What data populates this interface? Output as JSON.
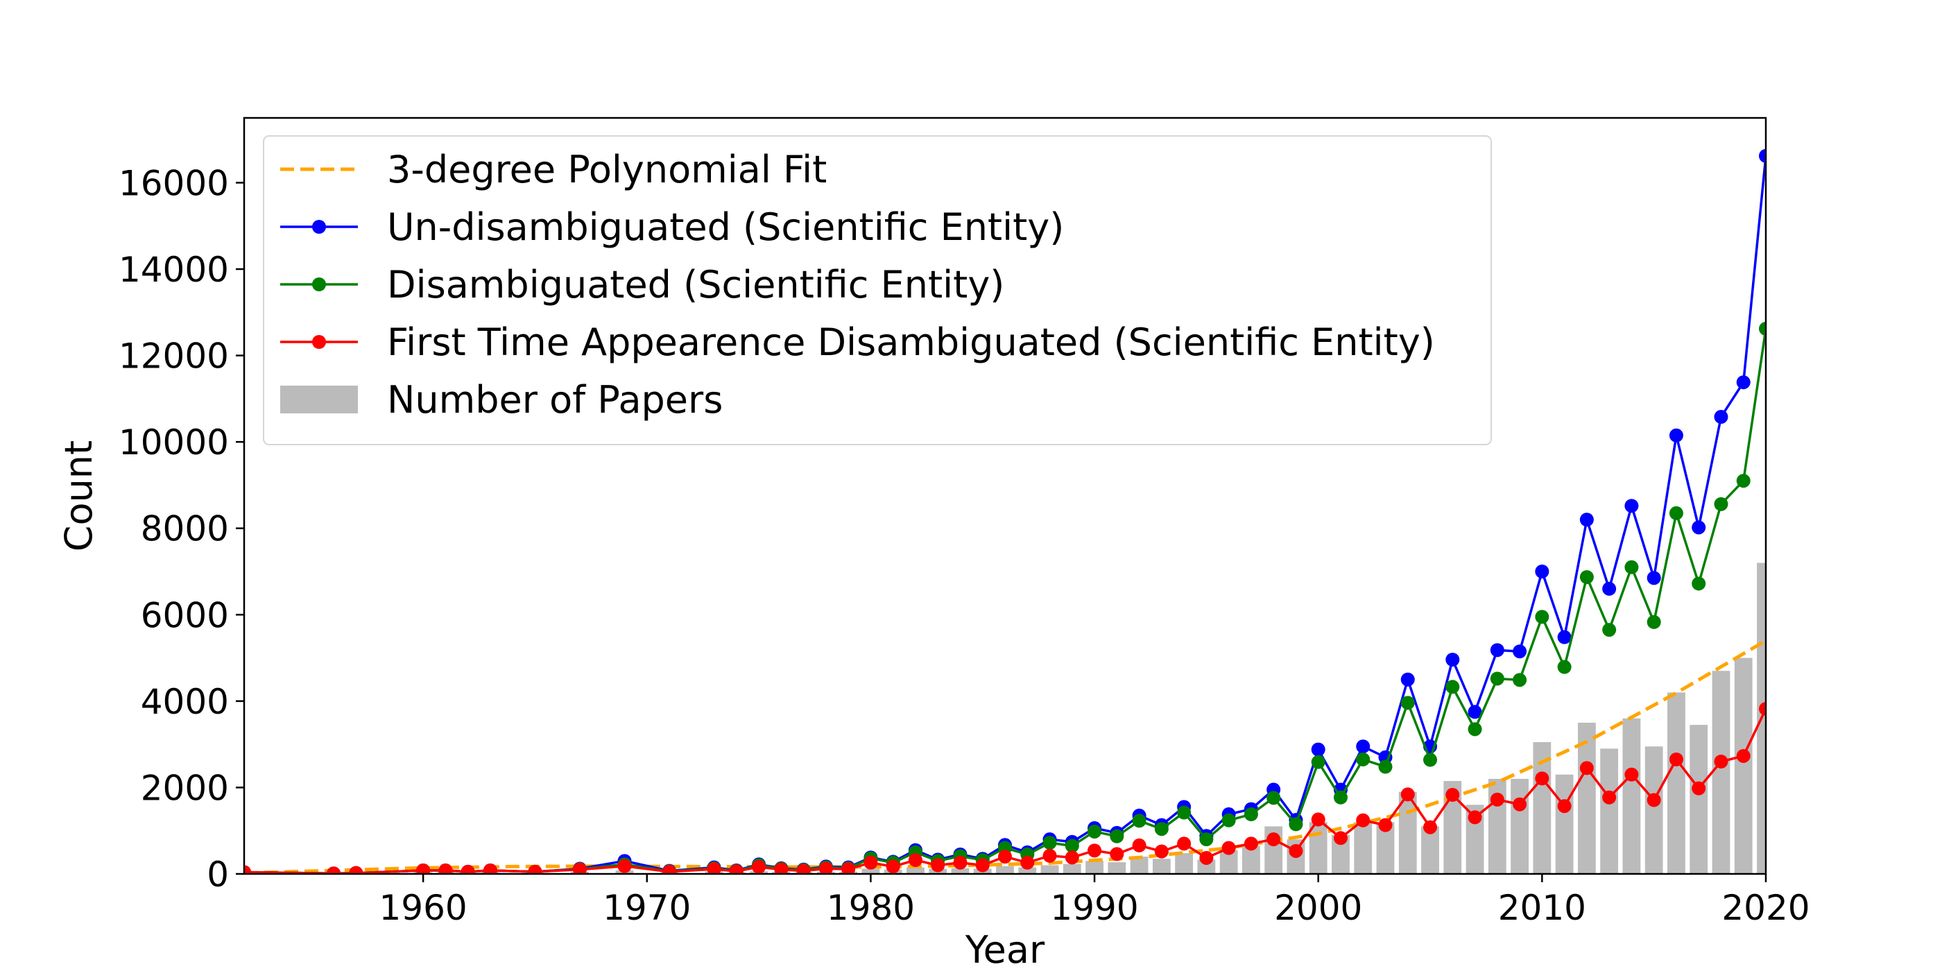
{
  "chart_data": {
    "type": "bar",
    "xlabel": "Year",
    "ylabel": "Count",
    "xlim": [
      1952,
      2020
    ],
    "ylim": [
      0,
      17500
    ],
    "x_ticks": [
      1960,
      1970,
      1980,
      1990,
      2000,
      2010,
      2020
    ],
    "y_ticks": [
      0,
      2000,
      4000,
      6000,
      8000,
      10000,
      12000,
      14000,
      16000
    ],
    "grid": false,
    "legend_position": "top-left",
    "bars": {
      "name": "Number of Papers",
      "color": "#bbbbbb",
      "x": [
        1952,
        1956,
        1957,
        1960,
        1961,
        1962,
        1963,
        1965,
        1967,
        1969,
        1971,
        1973,
        1974,
        1975,
        1976,
        1977,
        1978,
        1979,
        1980,
        1981,
        1982,
        1983,
        1984,
        1985,
        1986,
        1987,
        1988,
        1989,
        1990,
        1991,
        1992,
        1993,
        1994,
        1995,
        1996,
        1997,
        1998,
        1999,
        2000,
        2001,
        2002,
        2003,
        2004,
        2005,
        2006,
        2007,
        2008,
        2009,
        2010,
        2011,
        2012,
        2013,
        2014,
        2015,
        2016,
        2017,
        2018,
        2019,
        2020
      ],
      "values": [
        20,
        10,
        10,
        40,
        40,
        30,
        40,
        30,
        50,
        80,
        40,
        60,
        40,
        60,
        50,
        40,
        50,
        50,
        120,
        100,
        150,
        120,
        130,
        120,
        180,
        150,
        200,
        230,
        300,
        270,
        400,
        350,
        480,
        330,
        550,
        650,
        1100,
        800,
        1200,
        900,
        1200,
        1200,
        1900,
        1100,
        2150,
        1600,
        2200,
        2200,
        3050,
        2300,
        3500,
        2900,
        3600,
        2950,
        4200,
        3450,
        4700,
        5000,
        7200
      ]
    },
    "series": [
      {
        "name": "Un-disambiguated (Scientific Entity)",
        "color": "#0000ff",
        "markers": true,
        "x": [
          1952,
          1956,
          1957,
          1960,
          1961,
          1962,
          1963,
          1965,
          1967,
          1969,
          1971,
          1973,
          1974,
          1975,
          1976,
          1977,
          1978,
          1979,
          1980,
          1981,
          1982,
          1983,
          1984,
          1985,
          1986,
          1987,
          1988,
          1989,
          1990,
          1991,
          1992,
          1993,
          1994,
          1995,
          1996,
          1997,
          1998,
          1999,
          2000,
          2001,
          2002,
          2003,
          2004,
          2005,
          2006,
          2007,
          2008,
          2009,
          2010,
          2011,
          2012,
          2013,
          2014,
          2015,
          2016,
          2017,
          2018,
          2019,
          2020
        ],
        "values": [
          40,
          10,
          20,
          80,
          80,
          50,
          80,
          50,
          120,
          300,
          70,
          150,
          80,
          220,
          130,
          100,
          170,
          150,
          380,
          280,
          550,
          330,
          450,
          350,
          670,
          500,
          800,
          740,
          1060,
          950,
          1350,
          1130,
          1550,
          880,
          1380,
          1500,
          1950,
          1250,
          2880,
          1950,
          2950,
          2700,
          4500,
          2950,
          4960,
          3750,
          5180,
          5150,
          7000,
          5480,
          8200,
          6600,
          8520,
          6850,
          10150,
          8020,
          10580,
          11380,
          16620
        ]
      },
      {
        "name": "Disambiguated (Scientific Entity)",
        "color": "#008000",
        "markers": true,
        "x": [
          1952,
          1956,
          1957,
          1960,
          1961,
          1962,
          1963,
          1965,
          1967,
          1969,
          1971,
          1973,
          1974,
          1975,
          1976,
          1977,
          1978,
          1979,
          1980,
          1981,
          1982,
          1983,
          1984,
          1985,
          1986,
          1987,
          1988,
          1989,
          1990,
          1991,
          1992,
          1993,
          1994,
          1995,
          1996,
          1997,
          1998,
          1999,
          2000,
          2001,
          2002,
          2003,
          2004,
          2005,
          2006,
          2007,
          2008,
          2009,
          2010,
          2011,
          2012,
          2013,
          2014,
          2015,
          2016,
          2017,
          2018,
          2019,
          2020
        ],
        "values": [
          40,
          10,
          20,
          80,
          80,
          50,
          80,
          50,
          110,
          220,
          60,
          130,
          70,
          200,
          120,
          90,
          150,
          130,
          360,
          260,
          500,
          300,
          410,
          320,
          600,
          450,
          720,
          650,
          980,
          870,
          1230,
          1040,
          1420,
          800,
          1240,
          1380,
          1760,
          1150,
          2590,
          1770,
          2650,
          2480,
          3960,
          2640,
          4330,
          3350,
          4520,
          4490,
          5950,
          4790,
          6870,
          5650,
          7100,
          5830,
          8350,
          6720,
          8560,
          9100,
          12620
        ]
      },
      {
        "name": "First Time Appearence Disambiguated (Scientific Entity)",
        "color": "#ff0000",
        "markers": true,
        "x": [
          1952,
          1956,
          1957,
          1960,
          1961,
          1962,
          1963,
          1965,
          1967,
          1969,
          1971,
          1973,
          1974,
          1975,
          1976,
          1977,
          1978,
          1979,
          1980,
          1981,
          1982,
          1983,
          1984,
          1985,
          1986,
          1987,
          1988,
          1989,
          1990,
          1991,
          1992,
          1993,
          1994,
          1995,
          1996,
          1997,
          1998,
          1999,
          2000,
          2001,
          2002,
          2003,
          2004,
          2005,
          2006,
          2007,
          2008,
          2009,
          2010,
          2011,
          2012,
          2013,
          2014,
          2015,
          2016,
          2017,
          2018,
          2019,
          2020
        ],
        "values": [
          40,
          10,
          20,
          80,
          80,
          50,
          80,
          50,
          100,
          180,
          50,
          110,
          60,
          160,
          100,
          70,
          120,
          110,
          260,
          170,
          320,
          200,
          260,
          200,
          400,
          260,
          420,
          380,
          540,
          460,
          660,
          520,
          700,
          370,
          600,
          700,
          800,
          530,
          1260,
          830,
          1240,
          1130,
          1840,
          1080,
          1830,
          1310,
          1720,
          1610,
          2210,
          1570,
          2450,
          1770,
          2300,
          1710,
          2650,
          1980,
          2600,
          2730,
          3820
        ]
      },
      {
        "name": "3-degree Polynomial Fit",
        "color": "#ffa500",
        "dashed": true,
        "markers": false,
        "x": [
          1952,
          1956,
          1960,
          1964,
          1968,
          1972,
          1976,
          1980,
          1984,
          1988,
          1992,
          1996,
          2000,
          2004,
          2008,
          2012,
          2016,
          2020
        ],
        "values": [
          20,
          80,
          140,
          170,
          180,
          170,
          160,
          160,
          190,
          250,
          380,
          600,
          930,
          1430,
          2120,
          3060,
          4190,
          5400
        ]
      }
    ],
    "legend": [
      {
        "name": "3-degree Polynomial Fit",
        "kind": "dashed-line",
        "color": "#ffa500"
      },
      {
        "name": "Un-disambiguated (Scientific Entity)",
        "kind": "line-marker",
        "color": "#0000ff"
      },
      {
        "name": "Disambiguated (Scientific Entity)",
        "kind": "line-marker",
        "color": "#008000"
      },
      {
        "name": "First Time Appearence Disambiguated (Scientific Entity)",
        "kind": "line-marker",
        "color": "#ff0000"
      },
      {
        "name": "Number of Papers",
        "kind": "bar",
        "color": "#bbbbbb"
      }
    ]
  }
}
